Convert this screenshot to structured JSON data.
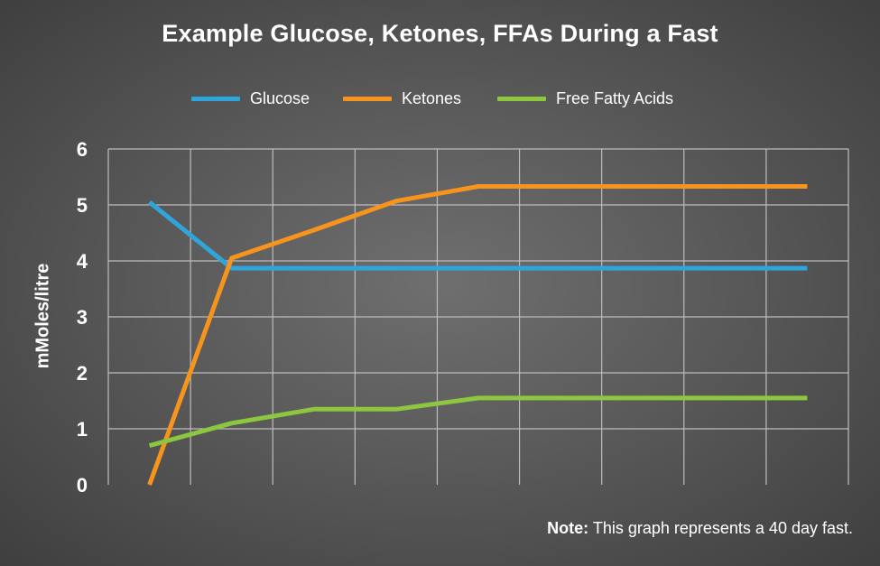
{
  "chart_data": {
    "type": "line",
    "title": "Example Glucose, Ketones, FFAs During a Fast",
    "xlabel": "",
    "ylabel": "mMoles/litre",
    "ylim": [
      0,
      6
    ],
    "yticks": [
      0,
      1,
      2,
      3,
      4,
      5,
      6
    ],
    "xlim": [
      0,
      9
    ],
    "grid": true,
    "legend_position": "top",
    "series": [
      {
        "name": "Glucose",
        "color": "#2ea6dc",
        "points": [
          [
            0.5,
            5.05
          ],
          [
            1.5,
            3.87
          ],
          [
            2.5,
            3.87
          ],
          [
            3.5,
            3.87
          ],
          [
            4.5,
            3.87
          ],
          [
            5.5,
            3.87
          ],
          [
            6.5,
            3.87
          ],
          [
            7.5,
            3.87
          ],
          [
            8.5,
            3.87
          ]
        ]
      },
      {
        "name": "Ketones",
        "color": "#f7941d",
        "points": [
          [
            0.5,
            0.0
          ],
          [
            1.5,
            4.05
          ],
          [
            2.5,
            4.55
          ],
          [
            3.5,
            5.07
          ],
          [
            4.5,
            5.33
          ],
          [
            5.5,
            5.33
          ],
          [
            6.5,
            5.33
          ],
          [
            7.5,
            5.33
          ],
          [
            8.5,
            5.33
          ]
        ]
      },
      {
        "name": "Free Fatty Acids",
        "color": "#8dc63f",
        "points": [
          [
            0.5,
            0.7
          ],
          [
            1.5,
            1.1
          ],
          [
            2.5,
            1.35
          ],
          [
            3.5,
            1.35
          ],
          [
            4.5,
            1.55
          ],
          [
            5.5,
            1.55
          ],
          [
            6.5,
            1.55
          ],
          [
            7.5,
            1.55
          ],
          [
            8.5,
            1.55
          ]
        ]
      }
    ]
  },
  "note": {
    "strong": "Note:",
    "text": " This graph represents a 40 day fast."
  }
}
